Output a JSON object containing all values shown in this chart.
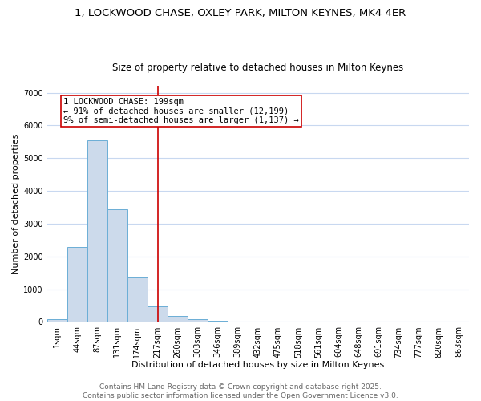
{
  "title_line1": "1, LOCKWOOD CHASE, OXLEY PARK, MILTON KEYNES, MK4 4ER",
  "title_line2": "Size of property relative to detached houses in Milton Keynes",
  "xlabel": "Distribution of detached houses by size in Milton Keynes",
  "ylabel": "Number of detached properties",
  "categories": [
    "1sqm",
    "44sqm",
    "87sqm",
    "131sqm",
    "174sqm",
    "217sqm",
    "260sqm",
    "303sqm",
    "346sqm",
    "389sqm",
    "432sqm",
    "475sqm",
    "518sqm",
    "561sqm",
    "604sqm",
    "648sqm",
    "691sqm",
    "734sqm",
    "777sqm",
    "820sqm",
    "863sqm"
  ],
  "values": [
    75,
    2300,
    5550,
    3450,
    1350,
    480,
    175,
    90,
    40,
    20,
    5,
    0,
    0,
    0,
    0,
    0,
    0,
    0,
    0,
    0,
    0
  ],
  "bar_color": "#ccdaeb",
  "bar_edge_color": "#6baed6",
  "vline_x_index": 5,
  "vline_color": "#cc0000",
  "annotation_text": "1 LOCKWOOD CHASE: 199sqm\n← 91% of detached houses are smaller (12,199)\n9% of semi-detached houses are larger (1,137) →",
  "box_color": "#cc0000",
  "ylim": [
    0,
    7200
  ],
  "yticks": [
    0,
    1000,
    2000,
    3000,
    4000,
    5000,
    6000,
    7000
  ],
  "footnote": "Contains HM Land Registry data © Crown copyright and database right 2025.\nContains public sector information licensed under the Open Government Licence v3.0.",
  "bg_color": "#ffffff",
  "grid_color": "#c8d8f0",
  "title_fontsize": 9.5,
  "subtitle_fontsize": 8.5,
  "axis_label_fontsize": 8,
  "tick_fontsize": 7,
  "annotation_fontsize": 7.5,
  "footnote_fontsize": 6.5
}
